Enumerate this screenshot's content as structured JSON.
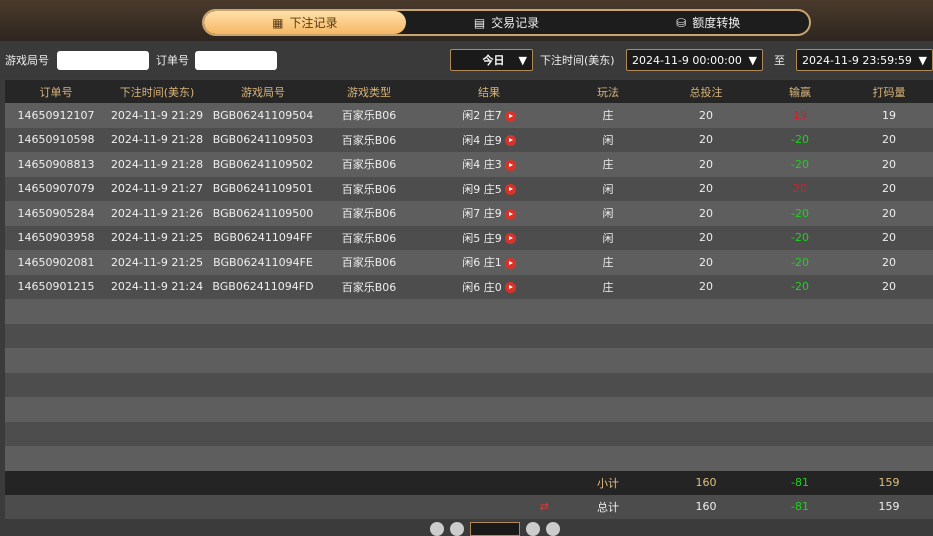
{
  "tabs": [
    {
      "label": "下注记录",
      "icon": "calendar-icon",
      "active": true
    },
    {
      "label": "交易记录",
      "icon": "clipboard-icon"
    },
    {
      "label": "额度转换",
      "icon": "coins-icon"
    }
  ],
  "filters": {
    "round_label": "游戏局号",
    "round_value": "",
    "order_label": "订单号",
    "order_value": "",
    "period": "今日",
    "time_label": "下注时间(美东)",
    "start": "2024-11-9 00:00:00",
    "to_label": "至",
    "end": "2024-11-9 23:59:59"
  },
  "columns": [
    "订单号",
    "下注时间(美东)",
    "游戏局号",
    "游戏类型",
    "结果",
    "玩法",
    "总投注",
    "输赢",
    "打码量"
  ],
  "rows": [
    [
      "14650912107",
      "2024-11-9 21:29",
      "BGB06241109504",
      "百家乐B06",
      "闲2 庄7",
      "庄",
      "20",
      "19",
      "19"
    ],
    [
      "14650910598",
      "2024-11-9 21:28",
      "BGB06241109503",
      "百家乐B06",
      "闲4 庄9",
      "闲",
      "20",
      "-20",
      "20"
    ],
    [
      "14650908813",
      "2024-11-9 21:28",
      "BGB06241109502",
      "百家乐B06",
      "闲4 庄3",
      "庄",
      "20",
      "-20",
      "20"
    ],
    [
      "14650907079",
      "2024-11-9 21:27",
      "BGB06241109501",
      "百家乐B06",
      "闲9 庄5",
      "闲",
      "20",
      "20",
      "20"
    ],
    [
      "14650905284",
      "2024-11-9 21:26",
      "BGB06241109500",
      "百家乐B06",
      "闲7 庄9",
      "闲",
      "20",
      "-20",
      "20"
    ],
    [
      "14650903958",
      "2024-11-9 21:25",
      "BGB062411094FF",
      "百家乐B06",
      "闲5 庄9",
      "闲",
      "20",
      "-20",
      "20"
    ],
    [
      "14650902081",
      "2024-11-9 21:25",
      "BGB062411094FE",
      "百家乐B06",
      "闲6 庄1",
      "庄",
      "20",
      "-20",
      "20"
    ],
    [
      "14650901215",
      "2024-11-9 21:24",
      "BGB062411094FD",
      "百家乐B06",
      "闲6 庄0",
      "庄",
      "20",
      "-20",
      "20"
    ]
  ],
  "subtotal": {
    "label": "小计",
    "bet": "160",
    "winloss": "-81",
    "turnover": "159"
  },
  "total": {
    "label": "总计",
    "bet": "160",
    "winloss": "-81",
    "turnover": "159"
  },
  "colors": {
    "win": "#d0202a",
    "loss": "#1fd01f",
    "accent": "#f5b865"
  }
}
